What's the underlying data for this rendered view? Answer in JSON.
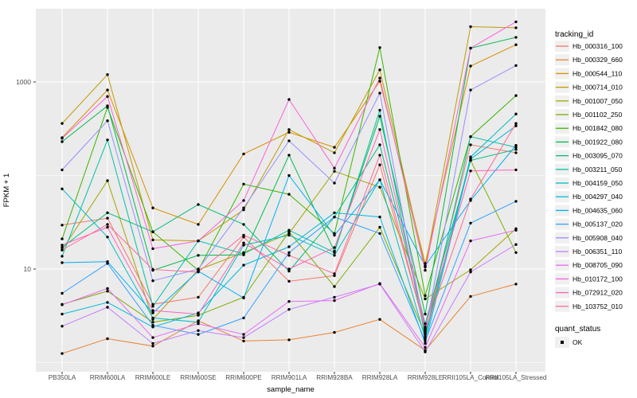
{
  "figure": {
    "xlabel": "sample_name",
    "ylabel": "FPKM + 1"
  },
  "legend": {
    "tracking_title": "tracking_id",
    "quant_title": "quant_status",
    "quant_items": [
      {
        "label": "OK",
        "symbol": "black-square-point"
      }
    ]
  },
  "chart_data": {
    "type": "line",
    "title": "",
    "xlabel": "sample_name",
    "ylabel": "FPKM + 1",
    "y_scale": "log10",
    "y_ticks": [
      {
        "value": 10,
        "label": "10"
      },
      {
        "value": 1000,
        "label": "1000"
      }
    ],
    "y_minor_gridlines": [
      1,
      100
    ],
    "ylim": [
      0.9,
      6000
    ],
    "grid": true,
    "panel_bg": "#EBEBEB",
    "gridline_color": "#FFFFFF",
    "point_color": "#000000",
    "legend_position": "right",
    "legend_key_bg": "#F0F0F0",
    "categories": [
      "PB350LA",
      "RRIM600LA",
      "RRIM600LE",
      "RRIM600SE",
      "RRIM600PE",
      "RRIM901LA",
      "RRIM928BA",
      "RRIM928LA",
      "RRIM928LE",
      "RRII105LA_Control",
      "RRII105LA_Stressed"
    ],
    "series": [
      {
        "name": "Hb_000316_100",
        "color": "#F8766D",
        "values": [
          29.5,
          35,
          4.2,
          5.0,
          22,
          7.4,
          8.5,
          130,
          2.3,
          213,
          175
        ]
      },
      {
        "name": "Hb_000329_660",
        "color": "#EA8331",
        "values": [
          1.25,
          1.8,
          1.5,
          2.8,
          1.7,
          1.75,
          2.1,
          2.9,
          1.35,
          5.1,
          6.9
        ]
      },
      {
        "name": "Hb_000544_110",
        "color": "#D89000",
        "values": [
          254,
          820,
          45,
          30,
          170,
          290,
          200,
          1020,
          11.5,
          1480,
          2500
        ]
      },
      {
        "name": "Hb_000714_010",
        "color": "#C09B00",
        "values": [
          360,
          1200,
          20.5,
          20,
          43,
          310,
          175,
          1350,
          10.5,
          3900,
          3800
        ]
      },
      {
        "name": "Hb_001007_050",
        "color": "#A3A500",
        "values": [
          16,
          88,
          2.9,
          9.8,
          15,
          24,
          111,
          75,
          4.8,
          9.8,
          27
        ]
      },
      {
        "name": "Hb_001102_250",
        "color": "#7CAE00",
        "values": [
          4.2,
          5.8,
          2.7,
          3.2,
          5.0,
          25,
          6.5,
          28,
          2.0,
          145,
          15
        ]
      },
      {
        "name": "Hb_001842_080",
        "color": "#39B600",
        "values": [
          21,
          535,
          25,
          9.7,
          81,
          63,
          24,
          2330,
          5.2,
          260,
          715
        ]
      },
      {
        "name": "Hb_001922_080",
        "color": "#00BB4E",
        "values": [
          230,
          555,
          9.7,
          14,
          14.2,
          165,
          15.5,
          430,
          3.3,
          2300,
          3000
        ]
      },
      {
        "name": "Hb_003095_070",
        "color": "#00BF7D",
        "values": [
          17,
          40,
          25,
          49,
          30,
          9.5,
          36,
          213,
          2.6,
          145,
          190
        ]
      },
      {
        "name": "Hb_003211_050",
        "color": "#00C1A3",
        "values": [
          13.7,
          240,
          4.0,
          20,
          14.5,
          26,
          15,
          500,
          1.9,
          260,
          200
        ]
      },
      {
        "name": "Hb_004159_050",
        "color": "#00BFC4",
        "values": [
          72,
          22,
          3.0,
          2.7,
          18,
          23,
          14,
          90,
          1.8,
          158,
          455
        ]
      },
      {
        "name": "Hb_004297_040",
        "color": "#00BAE0",
        "values": [
          3.3,
          4.4,
          2.4,
          3.4,
          11,
          17.3,
          40,
          36,
          1.6,
          150,
          340
        ]
      },
      {
        "name": "Hb_004635_060",
        "color": "#00B0F6",
        "values": [
          11.7,
          12,
          3.4,
          9.5,
          4.9,
          100,
          23,
          90,
          10.8,
          54,
          210
        ]
      },
      {
        "name": "Hb_005137_020",
        "color": "#35A2FF",
        "values": [
          5.5,
          11.5,
          2.5,
          2.0,
          3.0,
          15,
          36,
          24,
          1.7,
          31,
          53
        ]
      },
      {
        "name": "Hb_005908_040",
        "color": "#9590FF",
        "values": [
          115,
          385,
          7.5,
          10,
          45,
          235,
          83,
          760,
          2.1,
          820,
          1500
        ]
      },
      {
        "name": "Hb_006351_110",
        "color": "#C77CFF",
        "values": [
          2.45,
          3.9,
          1.6,
          2.2,
          1.85,
          3.7,
          5.0,
          6.9,
          1.3,
          9.3,
          18.3
        ]
      },
      {
        "name": "Hb_008705_090",
        "color": "#E76BF3",
        "values": [
          4.15,
          6.2,
          1.85,
          2.6,
          2.0,
          4.5,
          4.6,
          7.0,
          1.45,
          20,
          26
        ]
      },
      {
        "name": "Hb_010172_100",
        "color": "#FA62DB",
        "values": [
          250,
          700,
          16.5,
          20,
          54,
          650,
          120,
          1100,
          9.7,
          2300,
          4400
        ]
      },
      {
        "name": "Hb_072912_020",
        "color": "#FF62BC",
        "values": [
          18,
          28,
          3.6,
          3.3,
          19,
          10,
          17,
          310,
          2.4,
          112,
          115
        ]
      },
      {
        "name": "Hb_103752_010",
        "color": "#FF6A98",
        "values": [
          16,
          30,
          9.9,
          9.3,
          23,
          14,
          8.9,
          165,
          2.2,
          56,
          360
        ]
      }
    ]
  }
}
